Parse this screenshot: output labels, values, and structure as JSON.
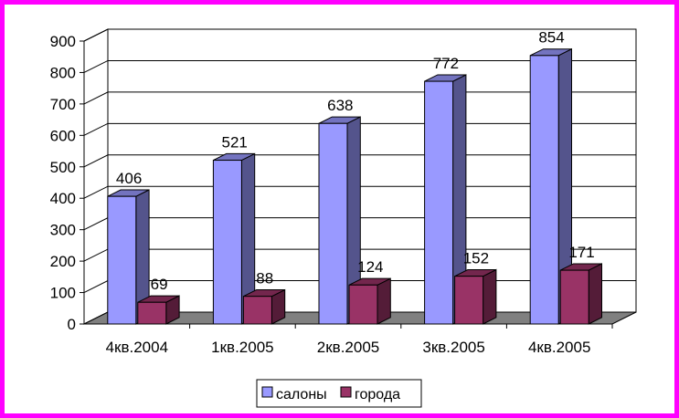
{
  "chart_data": {
    "type": "bar",
    "title": "",
    "xlabel": "",
    "ylabel": "",
    "categories": [
      "4кв.2004",
      "1кв.2005",
      "2кв.2005",
      "3кв.2005",
      "4кв.2005"
    ],
    "series": [
      {
        "name": "салоны",
        "values": [
          406,
          521,
          638,
          772,
          854
        ],
        "color": "#9999ff"
      },
      {
        "name": "города",
        "values": [
          69,
          88,
          124,
          152,
          171
        ],
        "color": "#993366"
      }
    ],
    "ylim": [
      0,
      900
    ],
    "yticks": [
      0,
      100,
      200,
      300,
      400,
      500,
      600,
      700,
      800,
      900
    ],
    "grid": true,
    "legend": "bottom",
    "style": "3d-clustered-column",
    "frame_color": "#ff00ff",
    "floor_color": "#808080"
  }
}
